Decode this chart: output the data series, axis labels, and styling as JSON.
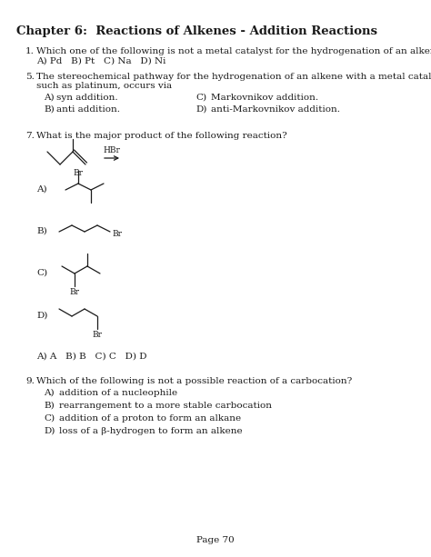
{
  "title": "Chapter 6:  Reactions of Alkenes - Addition Reactions",
  "bg_color": "#ffffff",
  "page_number": "Page 70",
  "q1_num": "1.",
  "q1_text": "Which one of the following is not a metal catalyst for the hydrogenation of an alkene?",
  "q1_ans": "A) Pd   B) Pt   C) Na   D) Ni",
  "q5_num": "5.",
  "q5_text1": "The stereochemical pathway for the hydrogenation of an alkene with a metal catalyst,",
  "q5_text2": "such as platinum, occurs via",
  "q5_a": "syn addition.",
  "q5_b": "anti addition.",
  "q5_c": "Markovnikov addition.",
  "q5_d": "anti-Markovnikov addition.",
  "q7_num": "7.",
  "q7_text": "What is the major product of the following reaction?",
  "q7_reagent": "HBr",
  "q7_ans": "A) A   B) B   C) C   D) D",
  "q9_num": "9.",
  "q9_text": "Which of the following is not a possible reaction of a carbocation?",
  "q9_a": "addition of a nucleophile",
  "q9_b": "rearrangement to a more stable carbocation",
  "q9_c": "addition of a proton to form an alkane",
  "q9_d": "loss of a β-hydrogen to form an alkene",
  "color": "#1a1a1a",
  "lw": 0.9
}
